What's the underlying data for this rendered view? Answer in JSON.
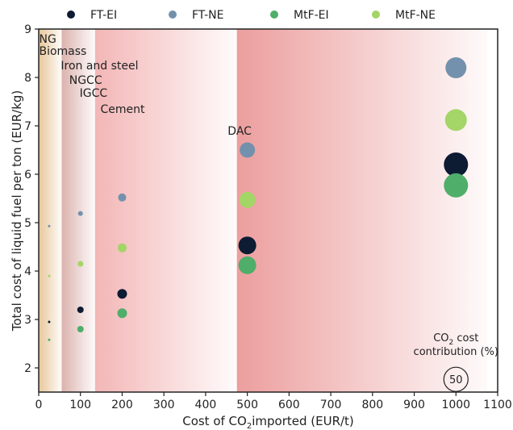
{
  "chart_data": {
    "type": "scatter",
    "xlabel_main": "Cost of CO",
    "xlabel_sub": "2",
    "xlabel_rest": "imported (EUR/t)",
    "ylabel": "Total cost of liquid fuel per ton (EUR/kg)",
    "xlim": [
      0,
      1100
    ],
    "ylim": [
      1.5,
      9
    ],
    "xticks": [
      0,
      100,
      200,
      300,
      400,
      500,
      600,
      700,
      800,
      900,
      1000,
      1100
    ],
    "yticks": [
      2,
      3,
      4,
      5,
      6,
      7,
      8,
      9
    ],
    "legend_position": "top",
    "series": [
      {
        "name": "FT-EI",
        "color": "#0d1b33",
        "points": [
          {
            "x": 25,
            "y": 2.95,
            "size": 3
          },
          {
            "x": 100,
            "y": 3.2,
            "size": 8
          },
          {
            "x": 200,
            "y": 3.53,
            "size": 12
          },
          {
            "x": 500,
            "y": 4.53,
            "size": 22
          },
          {
            "x": 1000,
            "y": 6.2,
            "size": 30
          }
        ]
      },
      {
        "name": "FT-NE",
        "color": "#7391ac",
        "points": [
          {
            "x": 25,
            "y": 4.93,
            "size": 3
          },
          {
            "x": 100,
            "y": 5.19,
            "size": 6
          },
          {
            "x": 200,
            "y": 5.52,
            "size": 10
          },
          {
            "x": 500,
            "y": 6.5,
            "size": 19
          },
          {
            "x": 1000,
            "y": 8.2,
            "size": 26
          }
        ]
      },
      {
        "name": "MtF-EI",
        "color": "#4fae6a",
        "points": [
          {
            "x": 25,
            "y": 2.58,
            "size": 3
          },
          {
            "x": 100,
            "y": 2.8,
            "size": 8
          },
          {
            "x": 200,
            "y": 3.13,
            "size": 12
          },
          {
            "x": 500,
            "y": 4.12,
            "size": 22
          },
          {
            "x": 1000,
            "y": 5.77,
            "size": 30
          }
        ]
      },
      {
        "name": "MtF-NE",
        "color": "#a3d567",
        "points": [
          {
            "x": 25,
            "y": 3.9,
            "size": 3
          },
          {
            "x": 100,
            "y": 4.15,
            "size": 7
          },
          {
            "x": 200,
            "y": 4.48,
            "size": 11
          },
          {
            "x": 500,
            "y": 5.47,
            "size": 20
          },
          {
            "x": 1000,
            "y": 7.12,
            "size": 27
          }
        ]
      }
    ],
    "bands": [
      {
        "x0": 0,
        "x1": 55,
        "color": "#e8c79a"
      },
      {
        "x0": 55,
        "x1": 135,
        "color": "#dcb2ad"
      },
      {
        "x0": 135,
        "x1": 475,
        "color": "#f3b6b6"
      },
      {
        "x0": 475,
        "x1": 1075,
        "color": "#ec9e9e"
      }
    ],
    "source_labels": [
      {
        "text": "NG",
        "x": 28,
        "y": 8.8
      },
      {
        "text": "Biomass",
        "x": 28,
        "y": 8.55
      },
      {
        "text": "Iron and steel",
        "x": 80,
        "y": 8.25
      },
      {
        "text": "NGCC",
        "x": 100,
        "y": 7.95
      },
      {
        "text": "IGCC",
        "x": 125,
        "y": 7.68
      },
      {
        "text": "Cement",
        "x": 175,
        "y": 7.35
      },
      {
        "text": "DAC",
        "x": 480,
        "y": 6.9
      }
    ],
    "size_legend": {
      "title_main": "CO",
      "title_sub": "2",
      "title_rest": " cost",
      "title_line2": "contribution (%)",
      "value": "50",
      "x": 1000,
      "y": 1.88
    }
  }
}
